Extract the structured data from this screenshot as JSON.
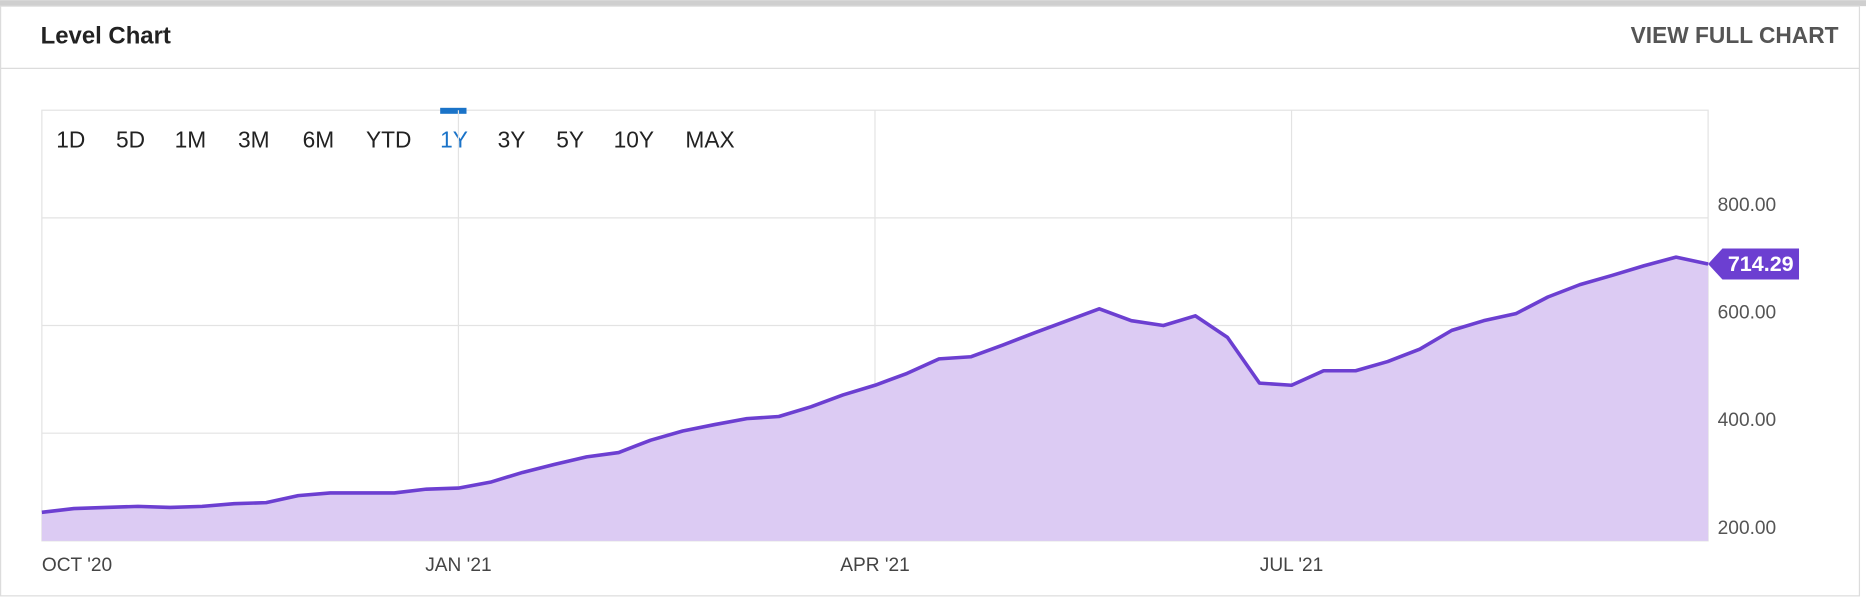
{
  "chart_data": {
    "type": "area",
    "title": "Level Chart",
    "link": "VIEW FULL CHART",
    "ranges": [
      "1D",
      "5D",
      "1M",
      "3M",
      "6M",
      "YTD",
      "1Y",
      "3Y",
      "5Y",
      "10Y",
      "MAX"
    ],
    "selected_range": "1Y",
    "categories": [
      "OCT '20",
      null,
      null,
      null,
      null,
      null,
      null,
      null,
      null,
      null,
      null,
      null,
      null,
      "JAN '21",
      null,
      null,
      null,
      null,
      null,
      null,
      null,
      null,
      null,
      null,
      null,
      null,
      "APR '21",
      null,
      null,
      null,
      null,
      null,
      null,
      null,
      null,
      null,
      null,
      null,
      null,
      "JUL '21",
      null,
      null,
      null,
      null,
      null,
      null,
      null,
      null,
      null,
      null,
      null,
      null,
      null
    ],
    "series": [
      {
        "name": "Level",
        "color": "#6c3fd1",
        "fill": "#dccbf3",
        "values": [
          253,
          260,
          262,
          264,
          262,
          264,
          269,
          271,
          284,
          289,
          289,
          289,
          296,
          298,
          309,
          327,
          342,
          356,
          364,
          387,
          404,
          416,
          427,
          431,
          449,
          471,
          489,
          511,
          538,
          542,
          564,
          587,
          609,
          631,
          609,
          600,
          618,
          578,
          493,
          489,
          516,
          516,
          533,
          556,
          591,
          609,
          622,
          653,
          676,
          693,
          711,
          727,
          714.29
        ]
      }
    ],
    "ylim": [
      200,
      1000
    ],
    "yticks": [
      {
        "value": 200,
        "label": "200.00"
      },
      {
        "value": 400,
        "label": "400.00"
      },
      {
        "value": 600,
        "label": "600.00"
      },
      {
        "value": 800,
        "label": "800.00"
      }
    ],
    "grid": true
  }
}
